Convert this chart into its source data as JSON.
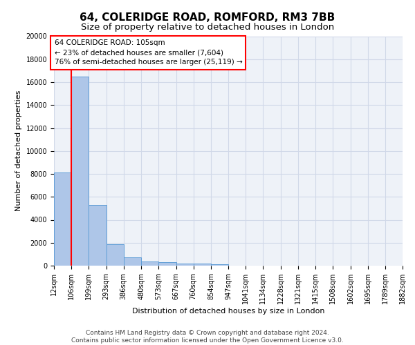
{
  "title": "64, COLERIDGE ROAD, ROMFORD, RM3 7BB",
  "subtitle": "Size of property relative to detached houses in London",
  "xlabel": "Distribution of detached houses by size in London",
  "ylabel": "Number of detached properties",
  "footer_line1": "Contains HM Land Registry data © Crown copyright and database right 2024.",
  "footer_line2": "Contains public sector information licensed under the Open Government Licence v3.0.",
  "bar_values": [
    8100,
    16500,
    5300,
    1850,
    700,
    370,
    290,
    210,
    200,
    120,
    0,
    0,
    0,
    0,
    0,
    0,
    0,
    0,
    0,
    0
  ],
  "bin_edges": [
    12,
    106,
    199,
    293,
    386,
    480,
    573,
    667,
    760,
    854,
    947,
    1041,
    1134,
    1228,
    1321,
    1415,
    1508,
    1602,
    1695,
    1789,
    1882
  ],
  "tick_labels": [
    "12sqm",
    "106sqm",
    "199sqm",
    "293sqm",
    "386sqm",
    "480sqm",
    "573sqm",
    "667sqm",
    "760sqm",
    "854sqm",
    "947sqm",
    "1041sqm",
    "1134sqm",
    "1228sqm",
    "1321sqm",
    "1415sqm",
    "1508sqm",
    "1602sqm",
    "1695sqm",
    "1789sqm",
    "1882sqm"
  ],
  "bar_color": "#aec6e8",
  "bar_edge_color": "#5b9bd5",
  "ylim": [
    0,
    20000
  ],
  "yticks": [
    0,
    2000,
    4000,
    6000,
    8000,
    10000,
    12000,
    14000,
    16000,
    18000,
    20000
  ],
  "red_line_x": 106,
  "annotation_text": "64 COLERIDGE ROAD: 105sqm\n← 23% of detached houses are smaller (7,604)\n76% of semi-detached houses are larger (25,119) →",
  "grid_color": "#d0d8e8",
  "background_color": "#eef2f8",
  "title_fontsize": 11,
  "subtitle_fontsize": 9.5,
  "axis_fontsize": 8,
  "tick_fontsize": 7,
  "footer_fontsize": 6.5
}
